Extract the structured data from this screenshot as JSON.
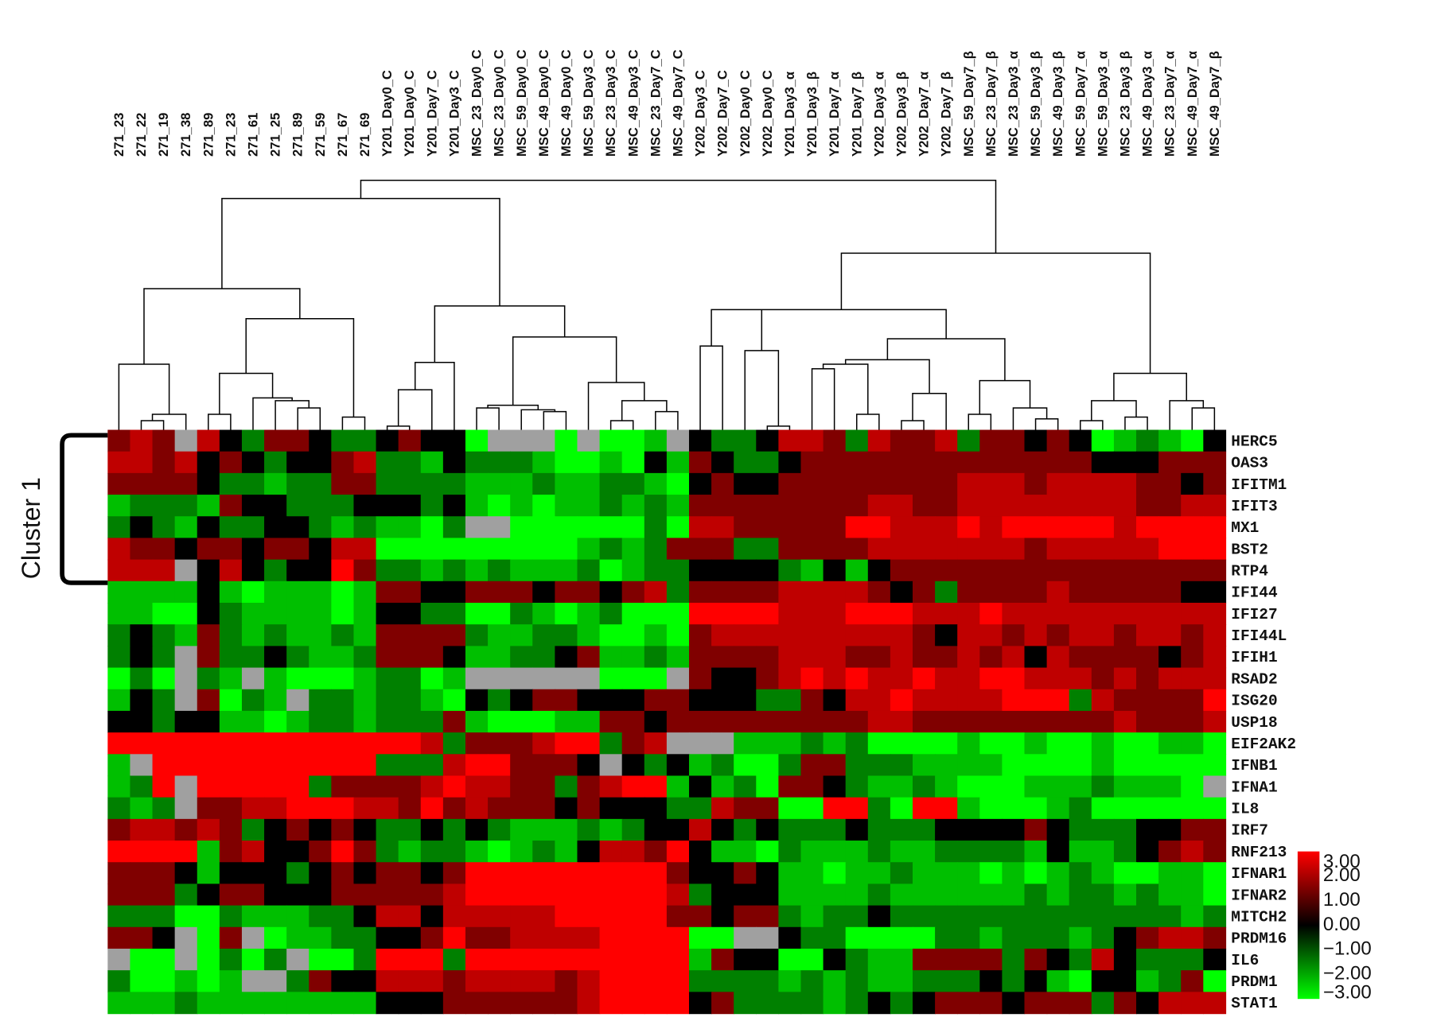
{
  "chart_data": {
    "type": "heatmap",
    "annotation": "Cluster 1",
    "columns": [
      "271_23",
      "271_22",
      "271_19",
      "271_38",
      "271_89",
      "271_23",
      "271_61",
      "271_25",
      "271_89",
      "271_59",
      "271_67",
      "271_69",
      "Y201_Day0_C",
      "Y201_Day0_C",
      "Y201_Day7_C",
      "Y201_Day3_C",
      "MSC_23_Day0_C",
      "MSC_23_Day0_C",
      "MSC_59_Day0_C",
      "MSC_49_Day0_C",
      "MSC_49_Day0_C",
      "MSC_59_Day3_C",
      "MSC_23_Day3_C",
      "MSC_49_Day3_C",
      "MSC_23_Day7_C",
      "MSC_49_Day7_C",
      "Y202_Day3_C",
      "Y202_Day7_C",
      "Y202_Day0_C",
      "Y202_Day0_C",
      "Y201_Day3_α",
      "Y201_Day3_β",
      "Y201_Day7_α",
      "Y201_Day7_β",
      "Y202_Day3_α",
      "Y202_Day3_β",
      "Y202_Day7_α",
      "Y202_Day7_β",
      "MSC_59_Day7_β",
      "MSC_23_Day7_β",
      "MSC_23_Day3_α",
      "MSC_59_Day3_β",
      "MSC_49_Day3_β",
      "MSC_59_Day7_α",
      "MSC_59_Day3_α",
      "MSC_23_Day3_β",
      "MSC_49_Day3_α",
      "MSC_23_Day7_α",
      "MSC_49_Day7_α",
      "MSC_49_Day7_β"
    ],
    "rows": [
      "HERC5",
      "OAS3",
      "IFITM1",
      "IFIT3",
      "MX1",
      "BST2",
      "RTP4",
      "IFI44",
      "IFI27",
      "IFI44L",
      "IFIH1",
      "RSAD2",
      "ISG20",
      "USP18",
      "EIF2AK2",
      "IFNB1",
      "IFNA1",
      "IL8",
      "IRF7",
      "RNF213",
      "IFNAR1",
      "IFNAR2",
      "MITCH2",
      "PRDM16",
      "IL6",
      "PRDM1",
      "STAT1"
    ],
    "values": [
      [
        1,
        2,
        1,
        null,
        2,
        0,
        -1,
        1,
        1,
        0,
        -1,
        -1,
        0,
        1,
        0,
        0,
        -3,
        null,
        null,
        null,
        -3,
        null,
        -3,
        -3,
        -2,
        null,
        0,
        -1,
        -1,
        0,
        2,
        2,
        1,
        -1,
        2,
        1,
        1,
        2,
        -1,
        1,
        1,
        0,
        1,
        0,
        -3,
        -2,
        -1,
        -2,
        -3,
        0
      ],
      [
        2,
        2,
        1,
        2,
        0,
        1,
        0,
        -1,
        0,
        0,
        1,
        2,
        -1,
        -1,
        -2,
        0,
        -1,
        -1,
        -1,
        -2,
        -3,
        -3,
        -2,
        -3,
        0,
        -2,
        1,
        0,
        -1,
        -1,
        0,
        1,
        1,
        1,
        1,
        1,
        1,
        1,
        1,
        1,
        1,
        1,
        1,
        1,
        0,
        0,
        0,
        1,
        1,
        1
      ],
      [
        1,
        1,
        1,
        1,
        0,
        -1,
        -1,
        -2,
        -1,
        -1,
        1,
        1,
        -1,
        -1,
        -1,
        -1,
        -2,
        -2,
        -2,
        -1,
        -2,
        -2,
        -1,
        -1,
        -2,
        -3,
        0,
        1,
        0,
        0,
        1,
        1,
        1,
        1,
        1,
        1,
        1,
        1,
        2,
        2,
        2,
        1,
        2,
        2,
        2,
        2,
        1,
        1,
        0,
        1
      ],
      [
        -2,
        -1,
        -1,
        -1,
        -2,
        1,
        0,
        0,
        -1,
        -1,
        -1,
        0,
        0,
        0,
        -1,
        0,
        -2,
        -3,
        -2,
        -3,
        -2,
        -2,
        -1,
        -2,
        -1,
        -2,
        1,
        1,
        1,
        1,
        1,
        1,
        1,
        1,
        2,
        2,
        1,
        1,
        2,
        2,
        2,
        2,
        2,
        2,
        2,
        2,
        1,
        1,
        2,
        2
      ],
      [
        -1,
        0,
        -1,
        -2,
        0,
        -1,
        -1,
        0,
        0,
        -1,
        -2,
        -1,
        -2,
        -2,
        -3,
        -1,
        null,
        null,
        -3,
        -3,
        -3,
        -3,
        -3,
        -3,
        -1,
        -3,
        2,
        2,
        1,
        1,
        1,
        1,
        1,
        3,
        3,
        2,
        2,
        2,
        3,
        2,
        3,
        3,
        3,
        3,
        3,
        2,
        3,
        3,
        3,
        3
      ],
      [
        2,
        1,
        1,
        0,
        1,
        1,
        0,
        1,
        1,
        0,
        2,
        2,
        -3,
        -3,
        -3,
        -3,
        -3,
        -3,
        -3,
        -3,
        -3,
        -2,
        -1,
        -2,
        -1,
        1,
        1,
        1,
        -1,
        -1,
        1,
        1,
        1,
        1,
        2,
        2,
        2,
        2,
        2,
        2,
        2,
        1,
        2,
        2,
        2,
        2,
        2,
        3,
        3,
        3
      ],
      [
        2,
        2,
        2,
        null,
        0,
        2,
        0,
        -1,
        0,
        0,
        3,
        1,
        -1,
        -1,
        -2,
        -1,
        -2,
        -1,
        -2,
        -2,
        -2,
        -1,
        -3,
        -2,
        -1,
        -1,
        0,
        0,
        0,
        0,
        -1,
        -2,
        0,
        -2,
        0,
        1,
        1,
        1,
        1,
        1,
        1,
        1,
        1,
        1,
        1,
        1,
        1,
        1,
        1,
        1
      ],
      [
        -2,
        -2,
        -2,
        -2,
        0,
        -2,
        -3,
        -2,
        -2,
        -2,
        -3,
        -2,
        1,
        1,
        0,
        0,
        1,
        1,
        1,
        0,
        1,
        1,
        0,
        1,
        2,
        -1,
        1,
        1,
        1,
        1,
        2,
        2,
        2,
        2,
        1,
        0,
        1,
        -1,
        1,
        1,
        1,
        1,
        2,
        1,
        1,
        1,
        1,
        1,
        0,
        0
      ],
      [
        -2,
        -2,
        -3,
        -3,
        0,
        -1,
        -2,
        -2,
        -2,
        -2,
        -3,
        -2,
        0,
        0,
        -1,
        -1,
        -3,
        -3,
        -1,
        -2,
        -3,
        -2,
        -1,
        -3,
        -3,
        -3,
        3,
        3,
        3,
        3,
        2,
        2,
        2,
        3,
        3,
        3,
        2,
        2,
        2,
        3,
        2,
        2,
        2,
        2,
        2,
        2,
        2,
        2,
        2,
        2
      ],
      [
        -1,
        0,
        -1,
        -2,
        1,
        -1,
        -2,
        -1,
        -2,
        -2,
        -1,
        -2,
        1,
        1,
        1,
        1,
        -1,
        -2,
        -2,
        -1,
        -1,
        -2,
        -3,
        -3,
        -2,
        -3,
        1,
        2,
        2,
        2,
        2,
        2,
        2,
        2,
        2,
        2,
        1,
        0,
        2,
        2,
        1,
        2,
        1,
        2,
        2,
        1,
        2,
        2,
        1,
        2
      ],
      [
        -1,
        0,
        -1,
        null,
        1,
        -1,
        -1,
        0,
        -1,
        -2,
        -2,
        -1,
        1,
        1,
        1,
        0,
        -2,
        -2,
        -1,
        -1,
        0,
        1,
        -2,
        -2,
        -1,
        -2,
        1,
        1,
        1,
        1,
        2,
        2,
        2,
        1,
        1,
        2,
        1,
        1,
        2,
        1,
        2,
        0,
        2,
        1,
        1,
        1,
        1,
        0,
        1,
        2
      ],
      [
        -3,
        -1,
        -3,
        null,
        -1,
        -2,
        null,
        -2,
        -3,
        -3,
        -3,
        -2,
        -1,
        -1,
        -3,
        -2,
        null,
        null,
        null,
        null,
        null,
        null,
        -3,
        -3,
        -3,
        null,
        1,
        0,
        0,
        1,
        2,
        3,
        2,
        3,
        2,
        2,
        3,
        2,
        2,
        3,
        3,
        2,
        2,
        2,
        1,
        2,
        1,
        2,
        2,
        2
      ],
      [
        -2,
        0,
        -1,
        null,
        1,
        -3,
        -1,
        -2,
        null,
        -1,
        -1,
        -2,
        -1,
        -1,
        -2,
        -3,
        0,
        -1,
        0,
        1,
        1,
        0,
        0,
        0,
        1,
        1,
        0,
        0,
        0,
        -1,
        -1,
        1,
        0,
        2,
        2,
        3,
        2,
        2,
        2,
        2,
        3,
        3,
        3,
        -1,
        2,
        1,
        1,
        1,
        1,
        3
      ],
      [
        0,
        0,
        -1,
        0,
        0,
        -2,
        -2,
        -3,
        -2,
        -1,
        -1,
        -2,
        -1,
        -1,
        -1,
        1,
        -2,
        -3,
        -3,
        -3,
        -2,
        -2,
        1,
        1,
        0,
        1,
        1,
        1,
        1,
        1,
        1,
        1,
        1,
        1,
        2,
        2,
        1,
        1,
        1,
        1,
        1,
        1,
        1,
        1,
        1,
        2,
        1,
        1,
        1,
        2
      ],
      [
        3,
        3,
        3,
        3,
        3,
        3,
        3,
        3,
        3,
        3,
        3,
        3,
        3,
        3,
        2,
        -1,
        1,
        1,
        1,
        2,
        3,
        3,
        -1,
        1,
        2,
        null,
        null,
        null,
        -2,
        -2,
        -2,
        -1,
        -2,
        -1,
        -3,
        -3,
        -3,
        -3,
        -2,
        -3,
        -3,
        -2,
        -3,
        -3,
        -2,
        -3,
        -3,
        -2,
        -2,
        -3
      ],
      [
        -2,
        null,
        3,
        3,
        3,
        3,
        3,
        3,
        3,
        3,
        3,
        3,
        -1,
        -1,
        -1,
        2,
        3,
        3,
        1,
        1,
        1,
        0,
        null,
        0,
        -1,
        0,
        -2,
        -1,
        -3,
        -3,
        -1,
        1,
        1,
        -1,
        -1,
        -1,
        -2,
        -2,
        -2,
        -2,
        -3,
        -3,
        -3,
        -3,
        -2,
        -3,
        -3,
        -3,
        -3,
        -3
      ],
      [
        -2,
        -1,
        3,
        null,
        3,
        3,
        3,
        3,
        3,
        -1,
        1,
        1,
        1,
        1,
        2,
        3,
        2,
        2,
        1,
        1,
        -1,
        1,
        2,
        3,
        3,
        -2,
        0,
        -2,
        -1,
        -3,
        1,
        1,
        0,
        -1,
        -2,
        -2,
        -1,
        -2,
        -3,
        -3,
        -3,
        -2,
        -2,
        -2,
        -1,
        -2,
        -2,
        -2,
        -3,
        null
      ],
      [
        -1,
        -2,
        -1,
        null,
        1,
        1,
        2,
        2,
        3,
        3,
        3,
        2,
        2,
        1,
        3,
        1,
        2,
        1,
        1,
        1,
        0,
        1,
        0,
        0,
        0,
        -1,
        -1,
        2,
        1,
        1,
        -3,
        -3,
        3,
        3,
        -1,
        -3,
        3,
        3,
        -2,
        -3,
        -3,
        -3,
        -2,
        -1,
        -3,
        -3,
        -3,
        -3,
        -3,
        -3
      ],
      [
        1,
        2,
        2,
        1,
        2,
        1,
        -1,
        0,
        1,
        0,
        1,
        0,
        -1,
        -1,
        0,
        -1,
        0,
        -1,
        -2,
        -2,
        -2,
        -1,
        -2,
        -1,
        0,
        0,
        2,
        0,
        -1,
        0,
        -1,
        -1,
        -1,
        0,
        -1,
        -1,
        -1,
        0,
        0,
        0,
        0,
        1,
        0,
        -1,
        -1,
        -1,
        0,
        0,
        1,
        1
      ],
      [
        3,
        3,
        3,
        3,
        -2,
        1,
        2,
        0,
        0,
        1,
        3,
        1,
        -1,
        -2,
        -1,
        -1,
        -2,
        -3,
        -2,
        -1,
        -2,
        0,
        2,
        2,
        1,
        3,
        0,
        -2,
        -2,
        -3,
        -1,
        -2,
        -2,
        -2,
        -1,
        -2,
        -2,
        -1,
        -1,
        -1,
        -1,
        -2,
        0,
        -2,
        -2,
        -1,
        0,
        1,
        2,
        1
      ],
      [
        1,
        1,
        1,
        0,
        -2,
        0,
        0,
        0,
        -1,
        0,
        1,
        0,
        1,
        1,
        0,
        1,
        3,
        3,
        3,
        3,
        3,
        3,
        3,
        3,
        3,
        1,
        0,
        0,
        1,
        0,
        -2,
        -2,
        -3,
        -2,
        -2,
        -1,
        -2,
        -2,
        -2,
        -3,
        -2,
        -3,
        -2,
        -1,
        -2,
        -3,
        -3,
        -2,
        -2,
        -3
      ],
      [
        1,
        1,
        1,
        -1,
        0,
        1,
        1,
        0,
        0,
        0,
        1,
        1,
        1,
        1,
        1,
        2,
        3,
        3,
        3,
        3,
        3,
        3,
        3,
        3,
        3,
        2,
        -1,
        0,
        0,
        0,
        -2,
        -2,
        -2,
        -2,
        -1,
        -2,
        -2,
        -2,
        -2,
        -2,
        -2,
        -1,
        -2,
        -1,
        -1,
        -2,
        -1,
        -2,
        -2,
        -3
      ],
      [
        -1,
        -1,
        -1,
        -3,
        -3,
        -1,
        -2,
        -2,
        -2,
        -1,
        -1,
        0,
        2,
        2,
        0,
        2,
        2,
        2,
        2,
        2,
        3,
        3,
        3,
        3,
        3,
        1,
        1,
        0,
        1,
        1,
        -1,
        -2,
        -1,
        -1,
        0,
        -1,
        -1,
        -1,
        -1,
        -1,
        -1,
        -1,
        -1,
        -1,
        -1,
        -1,
        -1,
        -1,
        -2,
        -1
      ],
      [
        1,
        1,
        0,
        null,
        -3,
        1,
        null,
        -3,
        -2,
        -2,
        -1,
        -1,
        0,
        0,
        1,
        3,
        1,
        1,
        2,
        2,
        2,
        2,
        3,
        3,
        3,
        3,
        -3,
        -3,
        null,
        null,
        0,
        -1,
        -1,
        -3,
        -3,
        -3,
        -3,
        -1,
        -1,
        -2,
        -1,
        -1,
        -1,
        -2,
        -1,
        0,
        1,
        2,
        2,
        1
      ],
      [
        null,
        -3,
        -3,
        null,
        -3,
        -1,
        -3,
        -1,
        null,
        -3,
        -3,
        -1,
        3,
        3,
        3,
        -1,
        3,
        3,
        3,
        3,
        3,
        3,
        3,
        3,
        3,
        3,
        -2,
        1,
        0,
        0,
        -3,
        -3,
        0,
        -1,
        -2,
        -2,
        1,
        1,
        1,
        1,
        -1,
        1,
        0,
        -1,
        2,
        0,
        -1,
        -1,
        -1,
        0
      ],
      [
        -1,
        -3,
        -3,
        -2,
        -3,
        -2,
        null,
        null,
        -1,
        1,
        0,
        0,
        2,
        2,
        2,
        1,
        2,
        2,
        2,
        2,
        1,
        2,
        3,
        3,
        3,
        3,
        -1,
        -1,
        -1,
        -1,
        -2,
        -1,
        -2,
        -1,
        -2,
        -2,
        -1,
        -1,
        -1,
        0,
        -1,
        0,
        -2,
        -3,
        0,
        0,
        -2,
        -1,
        1,
        -3
      ],
      [
        -2,
        -2,
        -2,
        -1,
        -2,
        -2,
        -2,
        -2,
        -2,
        -2,
        -2,
        -2,
        0,
        0,
        0,
        1,
        1,
        1,
        1,
        1,
        1,
        2,
        3,
        3,
        3,
        3,
        0,
        1,
        -1,
        -1,
        -1,
        -1,
        -2,
        -1,
        0,
        -1,
        0,
        1,
        1,
        1,
        0,
        1,
        1,
        1,
        -1,
        1,
        0,
        2,
        2,
        2
      ]
    ],
    "zlim": [
      -3,
      3
    ],
    "colors": {
      "low": "#00ff00",
      "mid": "#000000",
      "high": "#ff0000",
      "missing": "#a0a0a0"
    },
    "colorbar_ticks": [
      {
        "value": 3,
        "label": "3.00"
      },
      {
        "value": 2,
        "label": "2.00"
      },
      {
        "value": 1,
        "label": "1.00"
      },
      {
        "value": 0,
        "label": "0.00"
      },
      {
        "value": -1,
        "label": "−1.00"
      },
      {
        "value": -2,
        "label": "−2.00"
      },
      {
        "value": -3,
        "label": "−3.00"
      }
    ]
  }
}
